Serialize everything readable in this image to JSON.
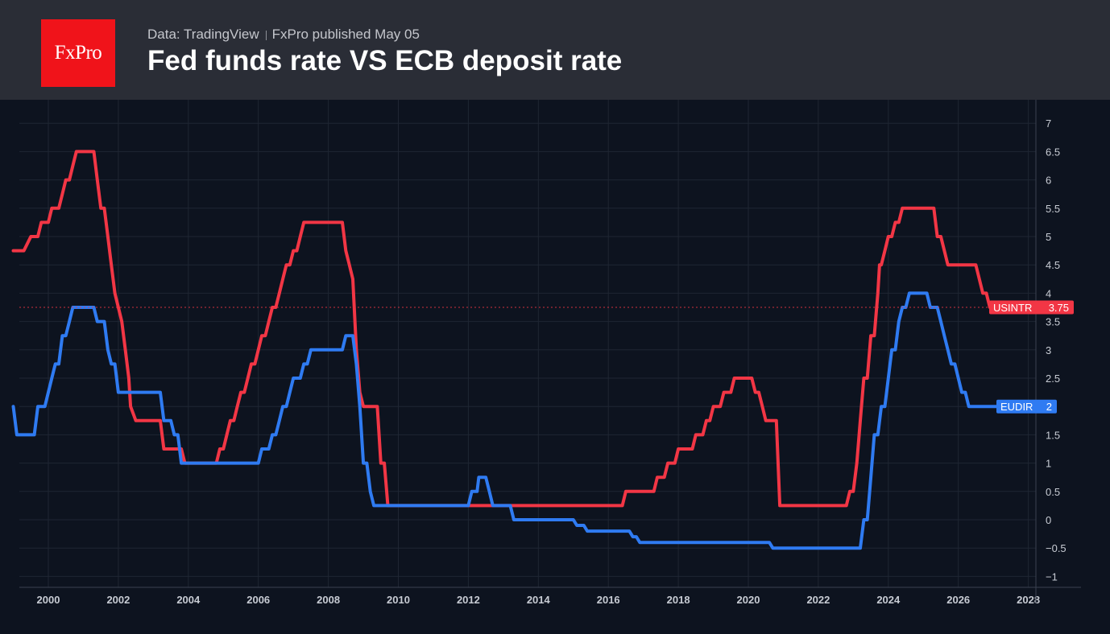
{
  "header": {
    "logo_text": "FxPro",
    "source": "Data: TradingView",
    "published": "FxPro published May 05",
    "title": "Fed funds rate VS ECB deposit rate"
  },
  "colors": {
    "background": "#0d131f",
    "header_bg": "#2a2d36",
    "logo_bg": "#f0131a",
    "usintr": "#f23645",
    "eudir": "#2f7bf2",
    "grid": "#1f2633",
    "axis_text": "#c8ccd4"
  },
  "chart_data": {
    "type": "line",
    "x_axis": {
      "min": 1999.0,
      "max": 2028.0,
      "ticks": [
        "2000",
        "2002",
        "2004",
        "2006",
        "2008",
        "2010",
        "2012",
        "2014",
        "2016",
        "2018",
        "2020",
        "2022",
        "2024",
        "2026",
        "2028"
      ]
    },
    "y_axis": {
      "min": -1.2,
      "max": 7.3,
      "ticks": [
        "7",
        "6.5",
        "6",
        "5.5",
        "5",
        "4.5",
        "4",
        "3.5",
        "3",
        "2.5",
        "2",
        "1.5",
        "1",
        "0.5",
        "0",
        "−0.5",
        "−1"
      ],
      "position": "right"
    },
    "grid": true,
    "series": [
      {
        "name": "USINTR",
        "last_value": "3.75",
        "color": "#f23645",
        "points": [
          [
            1999.0,
            4.75
          ],
          [
            1999.3,
            4.75
          ],
          [
            1999.5,
            5.0
          ],
          [
            1999.7,
            5.0
          ],
          [
            1999.8,
            5.25
          ],
          [
            2000.0,
            5.25
          ],
          [
            2000.1,
            5.5
          ],
          [
            2000.3,
            5.5
          ],
          [
            2000.4,
            5.75
          ],
          [
            2000.5,
            6.0
          ],
          [
            2000.6,
            6.0
          ],
          [
            2000.7,
            6.25
          ],
          [
            2000.8,
            6.5
          ],
          [
            2001.0,
            6.5
          ],
          [
            2001.3,
            6.5
          ],
          [
            2001.4,
            6.0
          ],
          [
            2001.5,
            5.5
          ],
          [
            2001.6,
            5.5
          ],
          [
            2001.7,
            5.0
          ],
          [
            2001.8,
            4.5
          ],
          [
            2001.9,
            4.0
          ],
          [
            2002.0,
            3.75
          ],
          [
            2002.1,
            3.5
          ],
          [
            2002.2,
            3.0
          ],
          [
            2002.3,
            2.5
          ],
          [
            2002.35,
            2.0
          ],
          [
            2002.5,
            1.75
          ],
          [
            2003.0,
            1.75
          ],
          [
            2003.2,
            1.75
          ],
          [
            2003.3,
            1.25
          ],
          [
            2003.8,
            1.25
          ],
          [
            2003.9,
            1.0
          ],
          [
            2004.0,
            1.0
          ],
          [
            2004.8,
            1.0
          ],
          [
            2004.9,
            1.25
          ],
          [
            2005.0,
            1.25
          ],
          [
            2005.1,
            1.5
          ],
          [
            2005.2,
            1.75
          ],
          [
            2005.3,
            1.75
          ],
          [
            2005.4,
            2.0
          ],
          [
            2005.5,
            2.25
          ],
          [
            2005.6,
            2.25
          ],
          [
            2005.7,
            2.5
          ],
          [
            2005.8,
            2.75
          ],
          [
            2005.9,
            2.75
          ],
          [
            2006.0,
            3.0
          ],
          [
            2006.1,
            3.25
          ],
          [
            2006.2,
            3.25
          ],
          [
            2006.3,
            3.5
          ],
          [
            2006.4,
            3.75
          ],
          [
            2006.5,
            3.75
          ],
          [
            2006.6,
            4.0
          ],
          [
            2006.7,
            4.25
          ],
          [
            2006.8,
            4.5
          ],
          [
            2006.9,
            4.5
          ],
          [
            2007.0,
            4.75
          ],
          [
            2007.1,
            4.75
          ],
          [
            2007.2,
            5.0
          ],
          [
            2007.3,
            5.25
          ],
          [
            2008.4,
            5.25
          ],
          [
            2008.5,
            4.75
          ],
          [
            2008.6,
            4.5
          ],
          [
            2008.7,
            4.25
          ],
          [
            2008.8,
            3.0
          ],
          [
            2008.9,
            2.25
          ],
          [
            2009.0,
            2.0
          ],
          [
            2009.4,
            2.0
          ],
          [
            2009.5,
            1.0
          ],
          [
            2009.6,
            1.0
          ],
          [
            2009.7,
            0.25
          ],
          [
            2016.4,
            0.25
          ],
          [
            2016.5,
            0.5
          ],
          [
            2017.3,
            0.5
          ],
          [
            2017.4,
            0.75
          ],
          [
            2017.6,
            0.75
          ],
          [
            2017.7,
            1.0
          ],
          [
            2017.9,
            1.0
          ],
          [
            2018.0,
            1.25
          ],
          [
            2018.4,
            1.25
          ],
          [
            2018.5,
            1.5
          ],
          [
            2018.7,
            1.5
          ],
          [
            2018.8,
            1.75
          ],
          [
            2018.9,
            1.75
          ],
          [
            2019.0,
            2.0
          ],
          [
            2019.2,
            2.0
          ],
          [
            2019.3,
            2.25
          ],
          [
            2019.5,
            2.25
          ],
          [
            2019.6,
            2.5
          ],
          [
            2020.1,
            2.5
          ],
          [
            2020.2,
            2.25
          ],
          [
            2020.3,
            2.25
          ],
          [
            2020.4,
            2.0
          ],
          [
            2020.5,
            1.75
          ],
          [
            2020.8,
            1.75
          ],
          [
            2020.9,
            0.25
          ],
          [
            2022.8,
            0.25
          ],
          [
            2022.9,
            0.5
          ],
          [
            2023.0,
            0.5
          ],
          [
            2023.1,
            1.0
          ],
          [
            2023.2,
            1.75
          ],
          [
            2023.3,
            2.5
          ],
          [
            2023.4,
            2.5
          ],
          [
            2023.5,
            3.25
          ],
          [
            2023.6,
            3.25
          ],
          [
            2023.7,
            4.0
          ],
          [
            2023.75,
            4.5
          ],
          [
            2023.8,
            4.5
          ],
          [
            2023.9,
            4.75
          ],
          [
            2024.0,
            5.0
          ],
          [
            2024.1,
            5.0
          ],
          [
            2024.2,
            5.25
          ],
          [
            2024.3,
            5.25
          ],
          [
            2024.4,
            5.5
          ],
          [
            2025.3,
            5.5
          ],
          [
            2025.4,
            5.0
          ],
          [
            2025.5,
            5.0
          ],
          [
            2025.7,
            4.5
          ],
          [
            2026.5,
            4.5
          ],
          [
            2026.7,
            4.0
          ],
          [
            2026.8,
            4.0
          ],
          [
            2026.9,
            3.75
          ],
          [
            2027.2,
            3.75
          ]
        ]
      },
      {
        "name": "EUDIR",
        "last_value": "2",
        "color": "#2f7bf2",
        "points": [
          [
            1999.0,
            2.0
          ],
          [
            1999.1,
            1.5
          ],
          [
            1999.6,
            1.5
          ],
          [
            1999.7,
            2.0
          ],
          [
            1999.9,
            2.0
          ],
          [
            2000.0,
            2.25
          ],
          [
            2000.1,
            2.5
          ],
          [
            2000.2,
            2.75
          ],
          [
            2000.3,
            2.75
          ],
          [
            2000.4,
            3.25
          ],
          [
            2000.5,
            3.25
          ],
          [
            2000.6,
            3.5
          ],
          [
            2000.7,
            3.75
          ],
          [
            2001.3,
            3.75
          ],
          [
            2001.4,
            3.5
          ],
          [
            2001.6,
            3.5
          ],
          [
            2001.7,
            3.0
          ],
          [
            2001.8,
            2.75
          ],
          [
            2001.9,
            2.75
          ],
          [
            2002.0,
            2.25
          ],
          [
            2003.0,
            2.25
          ],
          [
            2003.2,
            2.25
          ],
          [
            2003.3,
            1.75
          ],
          [
            2003.5,
            1.75
          ],
          [
            2003.6,
            1.5
          ],
          [
            2003.7,
            1.5
          ],
          [
            2003.8,
            1.0
          ],
          [
            2006.0,
            1.0
          ],
          [
            2006.1,
            1.25
          ],
          [
            2006.3,
            1.25
          ],
          [
            2006.4,
            1.5
          ],
          [
            2006.5,
            1.5
          ],
          [
            2006.6,
            1.75
          ],
          [
            2006.7,
            2.0
          ],
          [
            2006.8,
            2.0
          ],
          [
            2006.9,
            2.25
          ],
          [
            2007.0,
            2.5
          ],
          [
            2007.2,
            2.5
          ],
          [
            2007.3,
            2.75
          ],
          [
            2007.4,
            2.75
          ],
          [
            2007.5,
            3.0
          ],
          [
            2008.4,
            3.0
          ],
          [
            2008.5,
            3.25
          ],
          [
            2008.7,
            3.25
          ],
          [
            2008.8,
            2.75
          ],
          [
            2008.9,
            2.0
          ],
          [
            2009.0,
            1.0
          ],
          [
            2009.1,
            1.0
          ],
          [
            2009.2,
            0.5
          ],
          [
            2009.3,
            0.25
          ],
          [
            2012.0,
            0.25
          ],
          [
            2012.1,
            0.5
          ],
          [
            2012.25,
            0.5
          ],
          [
            2012.3,
            0.75
          ],
          [
            2012.5,
            0.75
          ],
          [
            2012.6,
            0.5
          ],
          [
            2012.7,
            0.25
          ],
          [
            2013.2,
            0.25
          ],
          [
            2013.3,
            0.0
          ],
          [
            2015.0,
            0.0
          ],
          [
            2015.1,
            -0.1
          ],
          [
            2015.3,
            -0.1
          ],
          [
            2015.4,
            -0.2
          ],
          [
            2016.6,
            -0.2
          ],
          [
            2016.7,
            -0.3
          ],
          [
            2016.8,
            -0.3
          ],
          [
            2016.9,
            -0.4
          ],
          [
            2020.6,
            -0.4
          ],
          [
            2020.7,
            -0.5
          ],
          [
            2023.2,
            -0.5
          ],
          [
            2023.3,
            0.0
          ],
          [
            2023.4,
            0.0
          ],
          [
            2023.5,
            0.75
          ],
          [
            2023.6,
            1.5
          ],
          [
            2023.7,
            1.5
          ],
          [
            2023.8,
            2.0
          ],
          [
            2023.9,
            2.0
          ],
          [
            2024.0,
            2.5
          ],
          [
            2024.1,
            3.0
          ],
          [
            2024.2,
            3.0
          ],
          [
            2024.3,
            3.5
          ],
          [
            2024.4,
            3.75
          ],
          [
            2024.5,
            3.75
          ],
          [
            2024.6,
            4.0
          ],
          [
            2025.1,
            4.0
          ],
          [
            2025.2,
            3.75
          ],
          [
            2025.4,
            3.75
          ],
          [
            2025.5,
            3.5
          ],
          [
            2025.6,
            3.25
          ],
          [
            2025.7,
            3.0
          ],
          [
            2025.8,
            2.75
          ],
          [
            2025.9,
            2.75
          ],
          [
            2026.0,
            2.5
          ],
          [
            2026.1,
            2.25
          ],
          [
            2026.2,
            2.25
          ],
          [
            2026.3,
            2.0
          ],
          [
            2027.2,
            2.0
          ]
        ]
      }
    ]
  }
}
